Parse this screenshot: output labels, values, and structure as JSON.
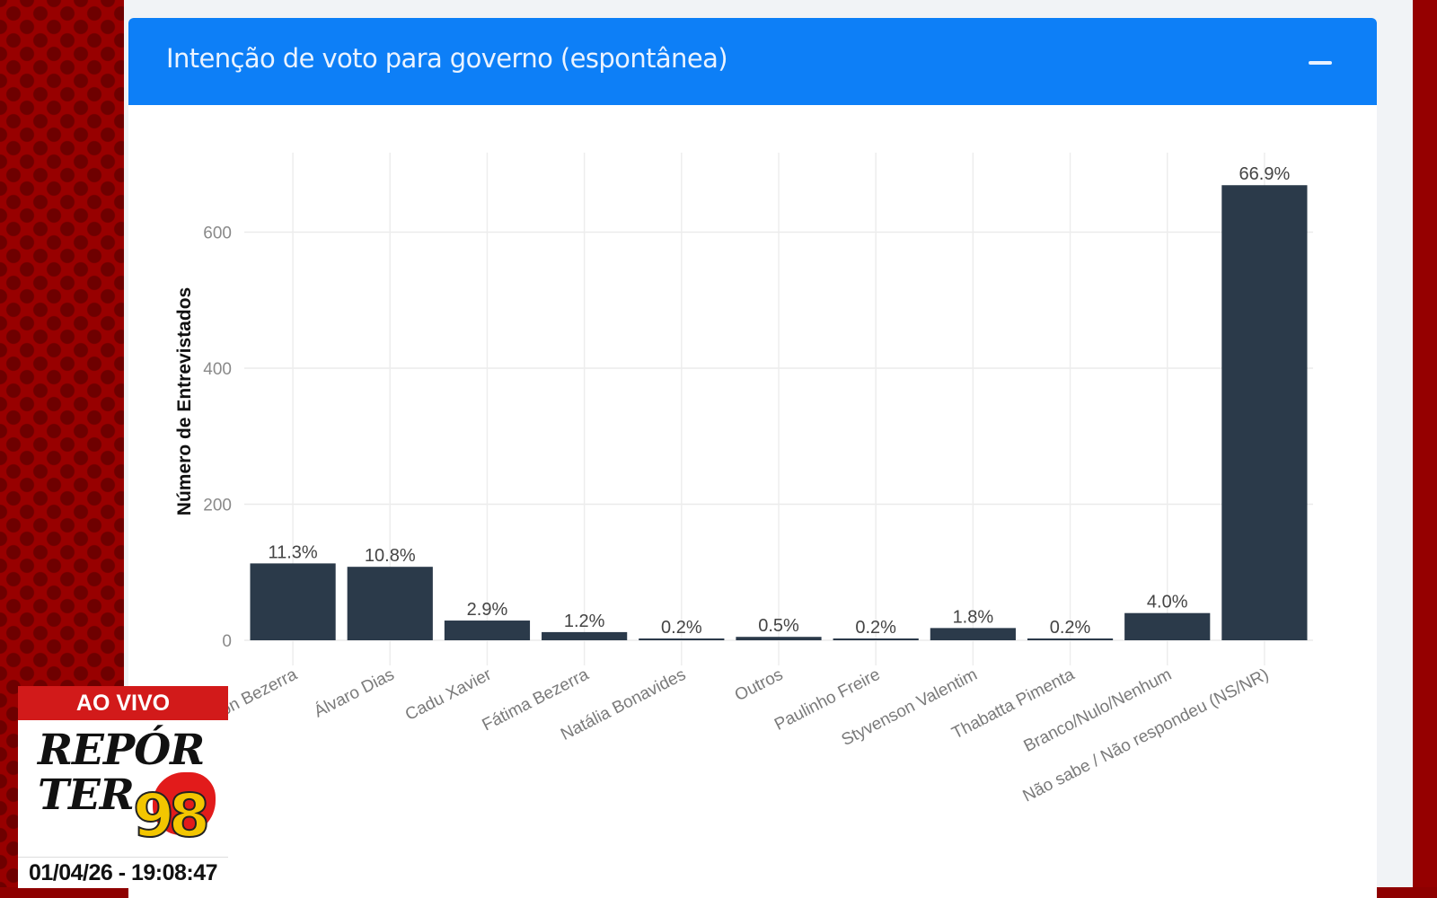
{
  "panel": {
    "title": "Intenção de voto para governo (espontânea)",
    "collapse_icon": "minus-icon"
  },
  "colors": {
    "header": "#0d7ff7",
    "bar": "#2b3a4a",
    "broadcast_red": "#d21a1a"
  },
  "chart_data": {
    "type": "bar",
    "title": "Intenção de voto para governo (espontânea)",
    "xlabel": "",
    "ylabel": "Número de Entrevistados",
    "ylim": [
      0,
      700
    ],
    "yticks": [
      0,
      200,
      400,
      600
    ],
    "grid": true,
    "categories": [
      "Allyson Bezerra",
      "Álvaro Dias",
      "Cadu Xavier",
      "Fátima Bezerra",
      "Natália Bonavides",
      "Outros",
      "Paulinho Freire",
      "Styvenson Valentim",
      "Thabatta Pimenta",
      "Branco/Nulo/Nenhum",
      "Não sabe / Não respondeu (NS/NR)"
    ],
    "tick_labels": [
      "on Bezerra",
      "Álvaro Dias",
      "Cadu Xavier",
      "Fátima Bezerra",
      "Natália Bonavides",
      "Outros",
      "Paulinho Freire",
      "Styvenson Valentim",
      "Thabatta Pimenta",
      "Branco/Nulo/Nenhum",
      "Não sabe / Não respondeu (NS/NR)"
    ],
    "values": [
      113,
      108,
      29,
      12,
      2,
      5,
      2,
      18,
      2,
      40,
      669
    ],
    "labels": [
      "11.3%",
      "10.8%",
      "2.9%",
      "1.2%",
      "0.2%",
      "0.5%",
      "0.2%",
      "1.8%",
      "0.2%",
      "4.0%",
      "66.9%"
    ]
  },
  "broadcast": {
    "live_label": "AO VIVO",
    "logo_line1": "REPÓR",
    "logo_line2": "TER",
    "logo_number": "98",
    "datetime": "01/04/26 - 19:08:47"
  }
}
